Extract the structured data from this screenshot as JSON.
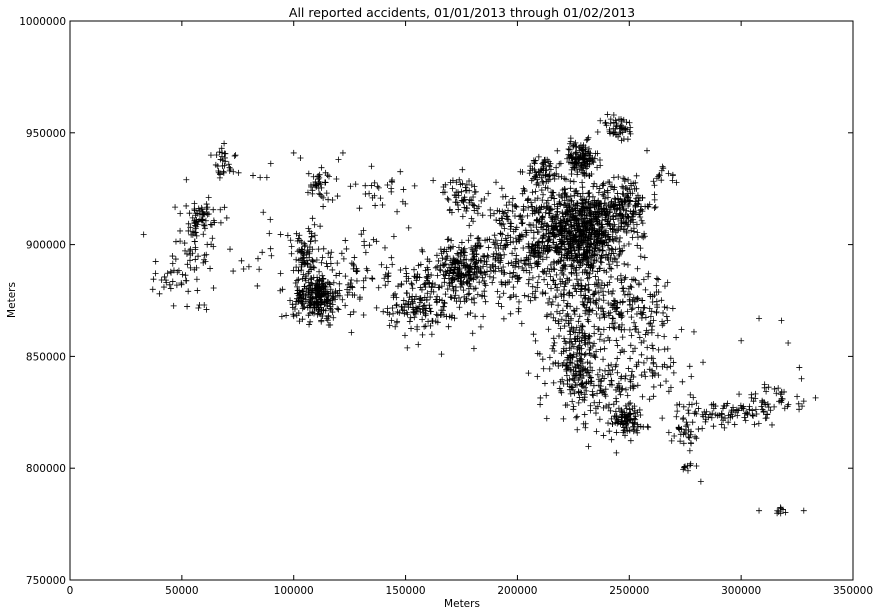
{
  "chart_data": {
    "type": "scatter",
    "title": "All reported accidents, 01/01/2013 through 01/02/2013",
    "xlabel": "Meters",
    "ylabel": "Meters",
    "xlim": [
      0,
      350000
    ],
    "ylim": [
      750000,
      1000000
    ],
    "xticks": [
      0,
      50000,
      100000,
      150000,
      200000,
      250000,
      300000,
      350000
    ],
    "yticks": [
      750000,
      800000,
      850000,
      900000,
      950000,
      1000000
    ],
    "xtick_labels": [
      "0",
      "50000",
      "100000",
      "150000",
      "200000",
      "250000",
      "300000",
      "350000"
    ],
    "ytick_labels": [
      "750000",
      "800000",
      "850000",
      "900000",
      "950000",
      "1000000"
    ],
    "grid": false,
    "marker": "+",
    "color": "#000000",
    "clusters": [
      {
        "x": 230000,
        "y": 905000,
        "sx": 9000,
        "sy": 9000,
        "n": 700
      },
      {
        "x": 228000,
        "y": 938000,
        "sx": 4000,
        "sy": 4000,
        "n": 140
      },
      {
        "x": 248000,
        "y": 918000,
        "sx": 6000,
        "sy": 7000,
        "n": 160
      },
      {
        "x": 245000,
        "y": 952000,
        "sx": 4000,
        "sy": 3000,
        "n": 50
      },
      {
        "x": 212000,
        "y": 933000,
        "sx": 4000,
        "sy": 3000,
        "n": 60
      },
      {
        "x": 215000,
        "y": 915000,
        "sx": 12000,
        "sy": 8000,
        "n": 200
      },
      {
        "x": 200000,
        "y": 895000,
        "sx": 14000,
        "sy": 12000,
        "n": 300
      },
      {
        "x": 175000,
        "y": 890000,
        "sx": 5000,
        "sy": 5000,
        "n": 150
      },
      {
        "x": 175000,
        "y": 922000,
        "sx": 4000,
        "sy": 4000,
        "n": 60
      },
      {
        "x": 165000,
        "y": 880000,
        "sx": 12000,
        "sy": 10000,
        "n": 200
      },
      {
        "x": 155000,
        "y": 870000,
        "sx": 8000,
        "sy": 4000,
        "n": 60
      },
      {
        "x": 110000,
        "y": 877000,
        "sx": 5000,
        "sy": 5000,
        "n": 250
      },
      {
        "x": 105000,
        "y": 895000,
        "sx": 5000,
        "sy": 6000,
        "n": 80
      },
      {
        "x": 112000,
        "y": 927000,
        "sx": 3000,
        "sy": 4000,
        "n": 40
      },
      {
        "x": 125000,
        "y": 885000,
        "sx": 10000,
        "sy": 10000,
        "n": 80
      },
      {
        "x": 140000,
        "y": 925000,
        "sx": 10000,
        "sy": 5000,
        "n": 30
      },
      {
        "x": 58000,
        "y": 912000,
        "sx": 3000,
        "sy": 3000,
        "n": 50
      },
      {
        "x": 55000,
        "y": 895000,
        "sx": 8000,
        "sy": 12000,
        "n": 60
      },
      {
        "x": 68000,
        "y": 935000,
        "sx": 3000,
        "sy": 4000,
        "n": 30
      },
      {
        "x": 47000,
        "y": 887000,
        "sx": 4000,
        "sy": 5000,
        "n": 20
      },
      {
        "x": 80000,
        "y": 905000,
        "sx": 12000,
        "sy": 15000,
        "n": 20
      },
      {
        "x": 232000,
        "y": 875000,
        "sx": 12000,
        "sy": 10000,
        "n": 250
      },
      {
        "x": 255000,
        "y": 870000,
        "sx": 8000,
        "sy": 8000,
        "n": 100
      },
      {
        "x": 225000,
        "y": 850000,
        "sx": 6000,
        "sy": 8000,
        "n": 150
      },
      {
        "x": 235000,
        "y": 835000,
        "sx": 9000,
        "sy": 8000,
        "n": 150
      },
      {
        "x": 248000,
        "y": 822000,
        "sx": 4000,
        "sy": 3000,
        "n": 90
      },
      {
        "x": 262000,
        "y": 845000,
        "sx": 8000,
        "sy": 10000,
        "n": 70
      },
      {
        "x": 265000,
        "y": 930000,
        "sx": 3000,
        "sy": 2000,
        "n": 15
      },
      {
        "x": 275000,
        "y": 815000,
        "sx": 3000,
        "sy": 4000,
        "n": 30
      },
      {
        "x": 285000,
        "y": 825000,
        "sx": 6000,
        "sy": 4000,
        "n": 40
      },
      {
        "x": 300000,
        "y": 825000,
        "sx": 6000,
        "sy": 3000,
        "n": 50
      },
      {
        "x": 315000,
        "y": 830000,
        "sx": 6000,
        "sy": 4000,
        "n": 40
      },
      {
        "x": 275000,
        "y": 800000,
        "sx": 1200,
        "sy": 1200,
        "n": 8
      },
      {
        "x": 318000,
        "y": 781000,
        "sx": 1500,
        "sy": 700,
        "n": 8
      }
    ],
    "points": [
      [
        37000,
        880000
      ],
      [
        40000,
        878000
      ],
      [
        42000,
        881000
      ],
      [
        60000,
        873000
      ],
      [
        63000,
        940000
      ],
      [
        74000,
        940000
      ],
      [
        85000,
        930000
      ],
      [
        100000,
        941000
      ],
      [
        120000,
        938000
      ],
      [
        122000,
        941000
      ],
      [
        308000,
        867000
      ],
      [
        318000,
        866000
      ],
      [
        321000,
        856000
      ],
      [
        326000,
        845000
      ],
      [
        327000,
        840000
      ],
      [
        308000,
        781000
      ],
      [
        328000,
        781000
      ],
      [
        282000,
        794000
      ],
      [
        280000,
        801000
      ],
      [
        328000,
        830000
      ],
      [
        325000,
        832000
      ],
      [
        300000,
        857000
      ],
      [
        100000,
        868000
      ],
      [
        120000,
        871000
      ],
      [
        140000,
        870000
      ],
      [
        135000,
        885000
      ],
      [
        95000,
        880000
      ],
      [
        90000,
        895000
      ],
      [
        88000,
        930000
      ],
      [
        52000,
        929000
      ],
      [
        62000,
        921000
      ]
    ]
  }
}
